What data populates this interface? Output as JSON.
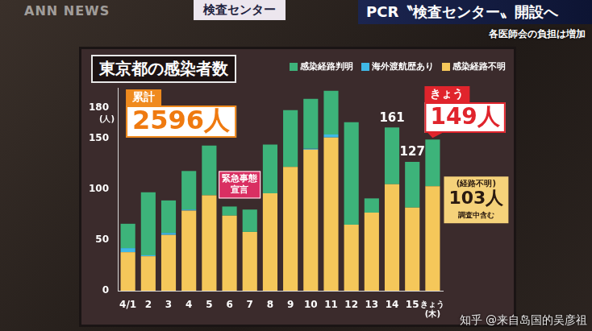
{
  "header": {
    "logo": "ANN NEWS",
    "sign": "検査センター",
    "headline": "PCR〝検査センター〟開設へ",
    "subheadline": "各医師会の負担は増加",
    "watermark": "知乎 @来自岛国的吴彦祖"
  },
  "chart_data": {
    "type": "bar",
    "title": "東京都の感染者数",
    "ylabel": "(人)",
    "categories": [
      "4/1",
      "2",
      "3",
      "4",
      "5",
      "6",
      "7",
      "8",
      "9",
      "10",
      "11",
      "12",
      "13",
      "14",
      "15",
      "きょう(木)"
    ],
    "series": [
      {
        "name": "感染経路判明",
        "color": "#3db37a",
        "values": [
          24,
          62,
          32,
          38,
          49,
          9,
          22,
          48,
          56,
          49,
          43,
          101,
          14,
          56,
          45,
          46
        ]
      },
      {
        "name": "海外渡航歴あり",
        "color": "#3fb8e6",
        "values": [
          4,
          1,
          2,
          1,
          0,
          0,
          0,
          0,
          0,
          1,
          3,
          0,
          0,
          0,
          0,
          0
        ]
      },
      {
        "name": "感染経路不明",
        "color": "#f5c75a",
        "values": [
          38,
          34,
          55,
          79,
          94,
          74,
          58,
          96,
          122,
          139,
          151,
          65,
          77,
          105,
          82,
          103
        ]
      }
    ],
    "stacked": true,
    "ylim": [
      0,
      200
    ],
    "yticks": [
      0,
      50,
      100,
      150,
      180
    ],
    "grid": false,
    "legend": "top-right",
    "total_labels": [
      {
        "text": "161",
        "category": "14"
      },
      {
        "text": "127",
        "category": "15"
      }
    ],
    "callouts": [
      {
        "text": "緊急事態宣言",
        "categories": [
          "6",
          "7"
        ]
      }
    ],
    "total_box": {
      "label": "累計",
      "value": "2596人"
    },
    "today_box": {
      "label": "きょう",
      "value": "149人",
      "category": "きょう(木)"
    },
    "unknown_box": {
      "label": "(経路不明)",
      "value": "103人",
      "note": "調査中含む",
      "category": "きょう(木)",
      "series": "感染経路不明"
    }
  }
}
